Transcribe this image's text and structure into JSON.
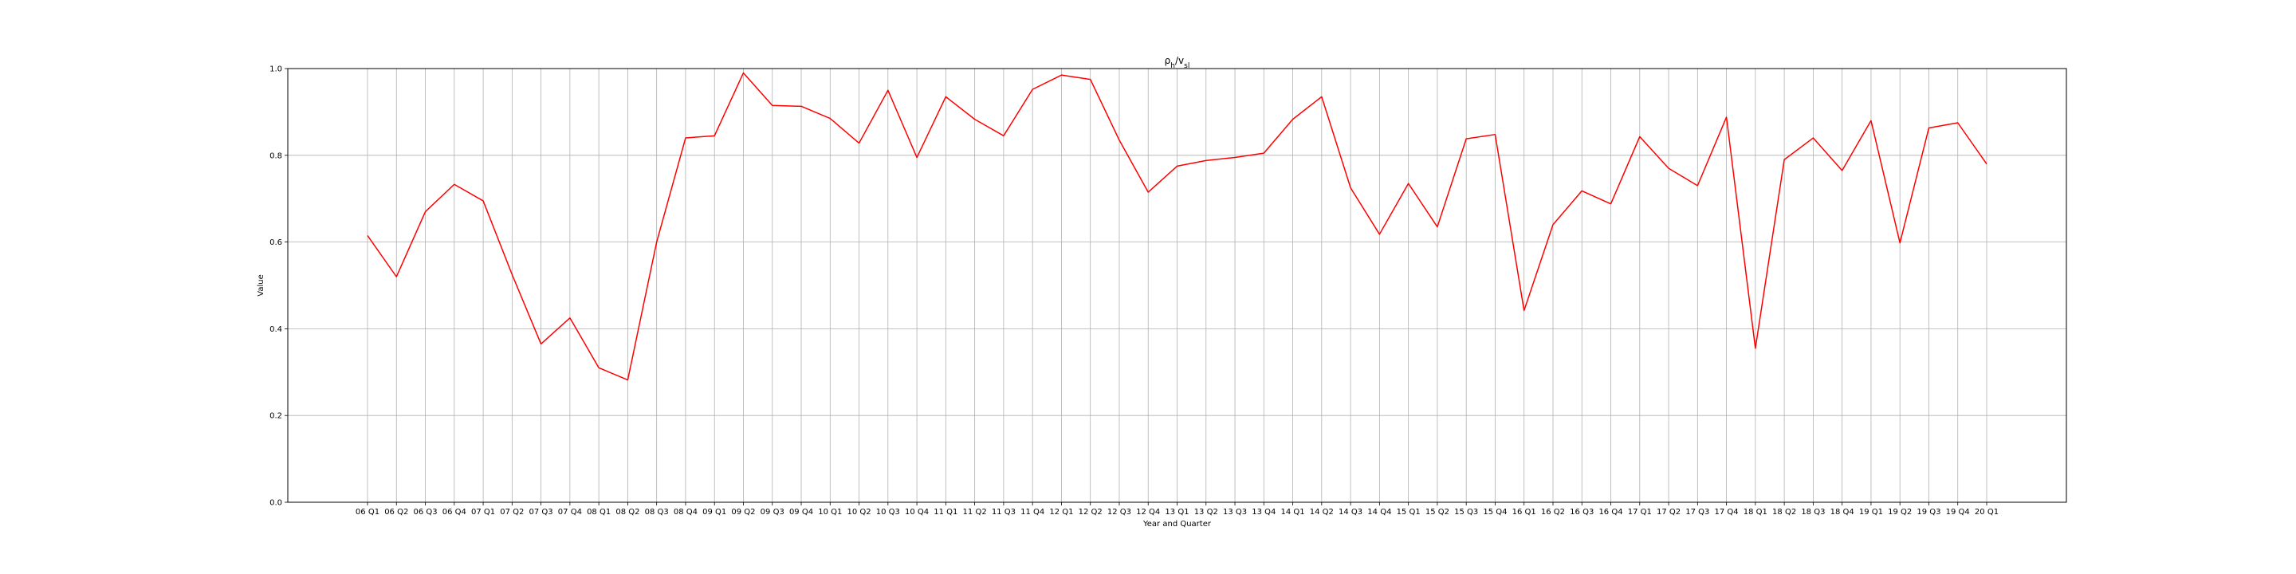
{
  "chart_data": {
    "type": "line",
    "title": "ρ_h/v_sl",
    "xlabel": "Year and Quarter",
    "ylabel": "Value",
    "ylim": [
      0.0,
      1.0
    ],
    "yticks": [
      "0.0",
      "0.2",
      "0.4",
      "0.6",
      "0.8",
      "1.0"
    ],
    "grid": true,
    "categories": [
      "06 Q1",
      "06 Q2",
      "06 Q3",
      "06 Q4",
      "07 Q1",
      "07 Q2",
      "07 Q3",
      "07 Q4",
      "08 Q1",
      "08 Q2",
      "08 Q3",
      "08 Q4",
      "09 Q1",
      "09 Q2",
      "09 Q3",
      "09 Q4",
      "10 Q1",
      "10 Q2",
      "10 Q3",
      "10 Q4",
      "11 Q1",
      "11 Q2",
      "11 Q3",
      "11 Q4",
      "12 Q1",
      "12 Q2",
      "12 Q3",
      "12 Q4",
      "13 Q1",
      "13 Q2",
      "13 Q3",
      "13 Q4",
      "14 Q1",
      "14 Q2",
      "14 Q3",
      "14 Q4",
      "15 Q1",
      "15 Q2",
      "15 Q3",
      "15 Q4",
      "16 Q1",
      "16 Q2",
      "16 Q3",
      "16 Q4",
      "17 Q1",
      "17 Q2",
      "17 Q3",
      "17 Q4",
      "18 Q1",
      "18 Q2",
      "18 Q3",
      "18 Q4",
      "19 Q1",
      "19 Q2",
      "19 Q3",
      "19 Q4",
      "20 Q1"
    ],
    "series": [
      {
        "color": "#ff0000",
        "values": [
          0.615,
          0.52,
          0.67,
          0.733,
          0.695,
          0.525,
          0.365,
          0.425,
          0.31,
          0.282,
          0.6,
          0.84,
          0.845,
          0.99,
          0.915,
          0.913,
          0.885,
          0.828,
          0.95,
          0.795,
          0.935,
          0.883,
          0.845,
          0.952,
          0.985,
          0.975,
          0.835,
          0.715,
          0.775,
          0.788,
          0.795,
          0.805,
          0.883,
          0.935,
          0.725,
          0.618,
          0.735,
          0.635,
          0.838,
          0.848,
          0.442,
          0.64,
          0.718,
          0.688,
          0.843,
          0.77,
          0.73,
          0.888,
          0.355,
          0.79,
          0.84,
          0.765,
          0.88,
          0.598,
          0.863,
          0.875,
          0.78
        ]
      }
    ]
  }
}
